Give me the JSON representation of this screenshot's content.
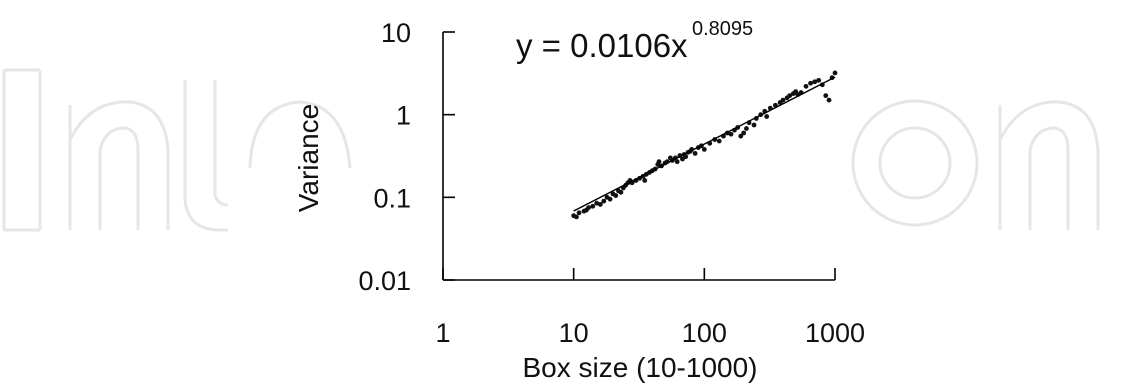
{
  "watermark": {
    "text": "IntechOpen"
  },
  "chart_data": {
    "type": "scatter",
    "title": "",
    "xlabel": "Box size (10-1000)",
    "ylabel": "Variance",
    "x_scale": "log",
    "y_scale": "log",
    "xlim": [
      1,
      1000
    ],
    "ylim": [
      0.01,
      10
    ],
    "x_ticks": [
      1,
      10,
      100,
      1000
    ],
    "x_tick_labels": [
      "1",
      "10",
      "100",
      "1000"
    ],
    "y_ticks": [
      0.01,
      0.1,
      1,
      10
    ],
    "y_tick_labels": [
      "0.01",
      "0.1",
      "1",
      "10"
    ],
    "grid": false,
    "annotation": {
      "base": "y = 0.0106x",
      "exponent": "0.8095"
    },
    "fit": {
      "type": "power",
      "coefficient": 0.0106,
      "exponent": 0.8095,
      "x_range": [
        10,
        1000
      ]
    },
    "series": [
      {
        "points": [
          [
            10,
            0.06
          ],
          [
            10.5,
            0.058
          ],
          [
            11,
            0.065
          ],
          [
            12,
            0.068
          ],
          [
            12.5,
            0.07
          ],
          [
            13,
            0.075
          ],
          [
            14,
            0.078
          ],
          [
            15,
            0.085
          ],
          [
            16,
            0.082
          ],
          [
            17,
            0.09
          ],
          [
            18,
            0.1
          ],
          [
            19,
            0.095
          ],
          [
            20,
            0.11
          ],
          [
            21,
            0.105
          ],
          [
            22,
            0.12
          ],
          [
            23,
            0.115
          ],
          [
            24,
            0.13
          ],
          [
            25,
            0.14
          ],
          [
            26,
            0.15
          ],
          [
            27,
            0.16
          ],
          [
            28,
            0.15
          ],
          [
            30,
            0.16
          ],
          [
            32,
            0.17
          ],
          [
            34,
            0.18
          ],
          [
            35,
            0.16
          ],
          [
            36,
            0.19
          ],
          [
            38,
            0.2
          ],
          [
            40,
            0.21
          ],
          [
            42,
            0.22
          ],
          [
            44,
            0.25
          ],
          [
            45,
            0.27
          ],
          [
            47,
            0.24
          ],
          [
            50,
            0.26
          ],
          [
            52,
            0.27
          ],
          [
            55,
            0.3
          ],
          [
            57,
            0.28
          ],
          [
            60,
            0.3
          ],
          [
            62,
            0.27
          ],
          [
            65,
            0.32
          ],
          [
            68,
            0.29
          ],
          [
            70,
            0.33
          ],
          [
            72,
            0.31
          ],
          [
            75,
            0.35
          ],
          [
            78,
            0.36
          ],
          [
            80,
            0.38
          ],
          [
            85,
            0.34
          ],
          [
            90,
            0.4
          ],
          [
            95,
            0.42
          ],
          [
            100,
            0.38
          ],
          [
            110,
            0.45
          ],
          [
            120,
            0.5
          ],
          [
            130,
            0.48
          ],
          [
            140,
            0.55
          ],
          [
            150,
            0.6
          ],
          [
            160,
            0.58
          ],
          [
            170,
            0.65
          ],
          [
            180,
            0.7
          ],
          [
            190,
            0.55
          ],
          [
            200,
            0.6
          ],
          [
            210,
            0.68
          ],
          [
            220,
            0.8
          ],
          [
            240,
            0.75
          ],
          [
            250,
            0.9
          ],
          [
            270,
            1.0
          ],
          [
            290,
            1.1
          ],
          [
            300,
            0.95
          ],
          [
            320,
            1.2
          ],
          [
            350,
            1.3
          ],
          [
            380,
            1.4
          ],
          [
            400,
            1.5
          ],
          [
            430,
            1.6
          ],
          [
            450,
            1.7
          ],
          [
            480,
            1.8
          ],
          [
            500,
            1.9
          ],
          [
            520,
            1.75
          ],
          [
            550,
            1.85
          ],
          [
            600,
            2.2
          ],
          [
            650,
            2.4
          ],
          [
            700,
            2.5
          ],
          [
            750,
            2.6
          ],
          [
            800,
            2.3
          ],
          [
            850,
            1.7
          ],
          [
            900,
            1.5
          ],
          [
            950,
            2.8
          ],
          [
            1000,
            3.2
          ]
        ]
      }
    ]
  }
}
